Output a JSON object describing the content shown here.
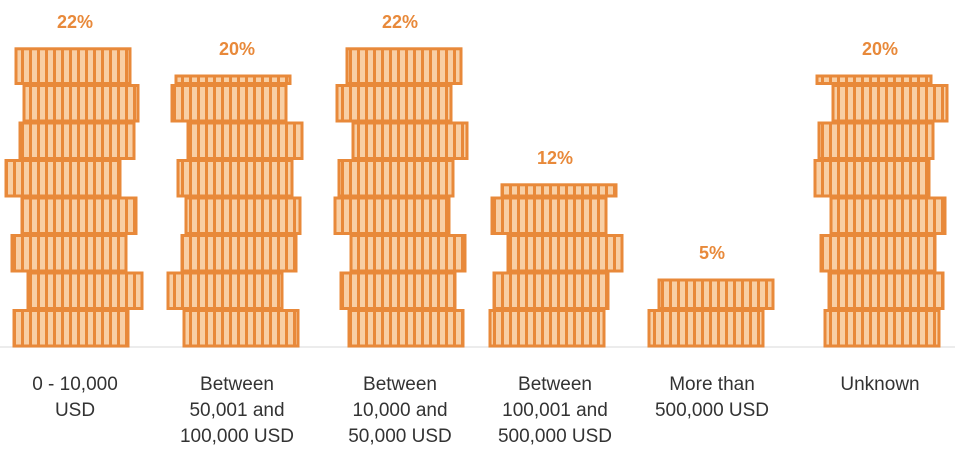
{
  "chart_data": {
    "type": "pictograph",
    "categories": [
      "0 - 10,000 USD",
      "Between 50,001 and 100,000 USD",
      "Between 10,000 and 50,000 USD",
      "Between 100,001 and 500,000 USD",
      "More than 500,000 USD",
      "Unknown"
    ],
    "values": [
      22,
      20,
      22,
      12,
      5,
      20
    ],
    "value_labels": [
      "22%",
      "20%",
      "22%",
      "12%",
      "5%",
      "20%"
    ],
    "color": "#e8893a"
  }
}
